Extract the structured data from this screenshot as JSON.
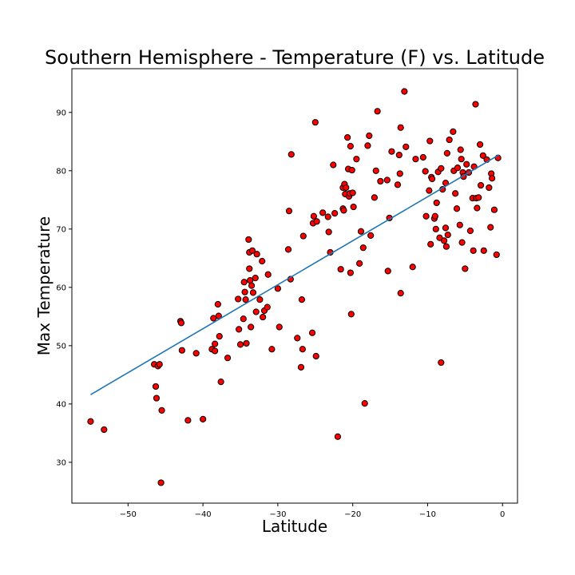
{
  "chart_data": {
    "type": "scatter",
    "title": "Southern Hemisphere - Temperature (F) vs. Latitude",
    "xlabel": "Latitude",
    "ylabel": "Max Temperature",
    "xlim": [
      -57.5,
      2.0
    ],
    "ylim": [
      23.0,
      97.5
    ],
    "xticks": [
      -50,
      -40,
      -30,
      -20,
      -10,
      0
    ],
    "xtick_labels": [
      "−50",
      "−40",
      "−30",
      "−20",
      "−10",
      "0"
    ],
    "yticks": [
      30,
      40,
      50,
      60,
      70,
      80,
      90
    ],
    "ytick_labels": [
      "30",
      "40",
      "50",
      "60",
      "70",
      "80",
      "90"
    ],
    "grid": false,
    "marker_color": "#ff0000",
    "marker_edge_color": "#000000",
    "line_color": "#1f77b4",
    "regression": {
      "x": [
        -55.0,
        -0.5
      ],
      "y": [
        41.6,
        82.7
      ]
    },
    "points": [
      [
        -55.0,
        37.0
      ],
      [
        -53.2,
        35.6
      ],
      [
        -46.5,
        46.8
      ],
      [
        -46.3,
        43.0
      ],
      [
        -46.2,
        41.0
      ],
      [
        -46.0,
        46.5
      ],
      [
        -45.8,
        46.8
      ],
      [
        -45.6,
        26.5
      ],
      [
        -45.5,
        38.9
      ],
      [
        -43.0,
        54.2
      ],
      [
        -42.9,
        53.9
      ],
      [
        -42.8,
        49.2
      ],
      [
        -42.0,
        37.2
      ],
      [
        -40.9,
        48.7
      ],
      [
        -40.0,
        37.4
      ],
      [
        -38.8,
        49.4
      ],
      [
        -38.6,
        54.7
      ],
      [
        -38.4,
        50.3
      ],
      [
        -38.4,
        49.1
      ],
      [
        -38.0,
        57.1
      ],
      [
        -37.9,
        55.1
      ],
      [
        -37.8,
        51.6
      ],
      [
        -37.6,
        43.8
      ],
      [
        -36.7,
        47.9
      ],
      [
        -35.3,
        58.0
      ],
      [
        -35.2,
        52.8
      ],
      [
        -35.0,
        50.2
      ],
      [
        -34.6,
        54.6
      ],
      [
        -34.5,
        60.9
      ],
      [
        -34.4,
        59.2
      ],
      [
        -34.3,
        57.9
      ],
      [
        -34.2,
        50.4
      ],
      [
        -33.9,
        68.2
      ],
      [
        -33.8,
        66.0
      ],
      [
        -33.8,
        63.2
      ],
      [
        -33.7,
        61.2
      ],
      [
        -33.6,
        53.2
      ],
      [
        -33.5,
        60.3
      ],
      [
        -33.4,
        66.3
      ],
      [
        -33.3,
        59.1
      ],
      [
        -33.0,
        61.6
      ],
      [
        -32.9,
        55.8
      ],
      [
        -32.8,
        65.7
      ],
      [
        -32.4,
        57.9
      ],
      [
        -32.1,
        64.5
      ],
      [
        -32.0,
        54.9
      ],
      [
        -31.8,
        56.0
      ],
      [
        -31.4,
        56.6
      ],
      [
        -31.3,
        62.2
      ],
      [
        -30.8,
        49.4
      ],
      [
        -30.0,
        59.8
      ],
      [
        -29.8,
        53.2
      ],
      [
        -28.6,
        66.5
      ],
      [
        -28.5,
        73.1
      ],
      [
        -28.3,
        61.4
      ],
      [
        -28.2,
        82.8
      ],
      [
        -27.4,
        51.3
      ],
      [
        -26.9,
        46.3
      ],
      [
        -26.8,
        57.9
      ],
      [
        -26.7,
        49.4
      ],
      [
        -26.6,
        68.8
      ],
      [
        -25.4,
        52.2
      ],
      [
        -25.3,
        71.0
      ],
      [
        -25.2,
        72.2
      ],
      [
        -25.0,
        88.3
      ],
      [
        -24.9,
        48.2
      ],
      [
        -24.8,
        71.3
      ],
      [
        -24.0,
        72.8
      ],
      [
        -23.3,
        72.1
      ],
      [
        -23.2,
        69.5
      ],
      [
        -23.0,
        66.0
      ],
      [
        -22.6,
        81.0
      ],
      [
        -22.4,
        72.7
      ],
      [
        -22.0,
        34.4
      ],
      [
        -21.6,
        63.1
      ],
      [
        -21.3,
        73.5
      ],
      [
        -21.3,
        77.1
      ],
      [
        -21.2,
        73.2
      ],
      [
        -21.1,
        77.7
      ],
      [
        -21.0,
        76.0
      ],
      [
        -20.9,
        77.1
      ],
      [
        -20.7,
        85.7
      ],
      [
        -20.6,
        80.3
      ],
      [
        -20.5,
        75.6
      ],
      [
        -20.4,
        76.1
      ],
      [
        -20.3,
        84.2
      ],
      [
        -20.3,
        62.5
      ],
      [
        -20.2,
        55.4
      ],
      [
        -20.1,
        80.1
      ],
      [
        -20.0,
        76.2
      ],
      [
        -19.9,
        73.8
      ],
      [
        -19.5,
        82.0
      ],
      [
        -19.1,
        64.1
      ],
      [
        -18.9,
        69.6
      ],
      [
        -18.6,
        66.8
      ],
      [
        -18.4,
        40.1
      ],
      [
        -18.0,
        84.3
      ],
      [
        -17.8,
        86.0
      ],
      [
        -17.6,
        68.9
      ],
      [
        -17.1,
        75.4
      ],
      [
        -16.9,
        80.0
      ],
      [
        -16.7,
        90.2
      ],
      [
        -16.3,
        78.2
      ],
      [
        -15.4,
        78.4
      ],
      [
        -15.3,
        62.8
      ],
      [
        -15.1,
        71.9
      ],
      [
        -14.8,
        83.3
      ],
      [
        -14.0,
        77.6
      ],
      [
        -13.8,
        82.7
      ],
      [
        -13.7,
        79.5
      ],
      [
        -13.6,
        87.4
      ],
      [
        -13.6,
        59.0
      ],
      [
        -13.1,
        93.6
      ],
      [
        -12.9,
        84.1
      ],
      [
        -12.0,
        63.5
      ],
      [
        -11.6,
        82.0
      ],
      [
        -10.6,
        82.3
      ],
      [
        -10.3,
        79.9
      ],
      [
        -10.2,
        72.2
      ],
      [
        -9.8,
        76.6
      ],
      [
        -9.7,
        85.1
      ],
      [
        -9.6,
        67.4
      ],
      [
        -9.5,
        78.9
      ],
      [
        -9.4,
        78.6
      ],
      [
        -9.1,
        71.8
      ],
      [
        -9.0,
        72.2
      ],
      [
        -8.9,
        70.0
      ],
      [
        -8.8,
        74.5
      ],
      [
        -8.6,
        79.8
      ],
      [
        -8.4,
        68.5
      ],
      [
        -8.2,
        80.4
      ],
      [
        -8.2,
        47.1
      ],
      [
        -8.0,
        76.8
      ],
      [
        -7.8,
        68.0
      ],
      [
        -7.6,
        70.2
      ],
      [
        -7.6,
        77.9
      ],
      [
        -7.5,
        67.0
      ],
      [
        -7.4,
        83.0
      ],
      [
        -7.3,
        69.0
      ],
      [
        -7.1,
        85.3
      ],
      [
        -6.6,
        86.7
      ],
      [
        -6.5,
        80.0
      ],
      [
        -6.3,
        76.1
      ],
      [
        -6.1,
        73.5
      ],
      [
        -6.0,
        80.5
      ],
      [
        -5.7,
        70.7
      ],
      [
        -5.6,
        83.6
      ],
      [
        -5.5,
        82.0
      ],
      [
        -5.4,
        67.7
      ],
      [
        -5.3,
        79.7
      ],
      [
        -5.2,
        79.0
      ],
      [
        -5.0,
        63.2
      ],
      [
        -4.8,
        81.1
      ],
      [
        -4.5,
        79.7
      ],
      [
        -4.3,
        69.7
      ],
      [
        -4.0,
        75.3
      ],
      [
        -3.9,
        66.3
      ],
      [
        -3.8,
        80.7
      ],
      [
        -3.6,
        91.4
      ],
      [
        -3.5,
        75.3
      ],
      [
        -3.4,
        73.6
      ],
      [
        -3.2,
        75.4
      ],
      [
        -3.0,
        84.5
      ],
      [
        -2.9,
        77.5
      ],
      [
        -2.6,
        82.6
      ],
      [
        -2.5,
        66.3
      ],
      [
        -2.1,
        81.9
      ],
      [
        -1.8,
        77.1
      ],
      [
        -1.6,
        70.3
      ],
      [
        -1.5,
        79.5
      ],
      [
        -1.4,
        78.7
      ],
      [
        -1.1,
        73.3
      ],
      [
        -0.8,
        65.6
      ],
      [
        -0.6,
        82.2
      ]
    ]
  }
}
